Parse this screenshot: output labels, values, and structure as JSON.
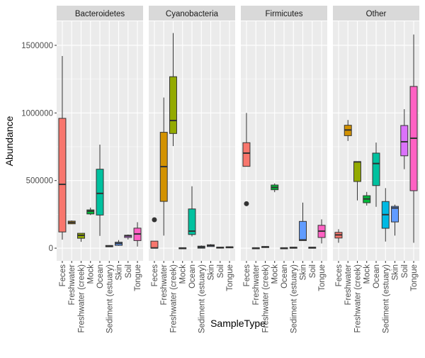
{
  "chart_data": {
    "type": "boxplot",
    "title": "",
    "xlabel": "SampleType",
    "ylabel": "Abundance",
    "ylim": [
      -94000,
      1678000
    ],
    "yticks": [
      0,
      500000,
      1000000,
      1500000
    ],
    "ytick_labels": [
      "0",
      "500000",
      "1000000",
      "1500000"
    ],
    "grid": true,
    "categories": [
      "Feces",
      "Freshwater",
      "Freshwater (creek)",
      "Mock",
      "Ocean",
      "Sediment (estuary)",
      "Skin",
      "Soil",
      "Tongue"
    ],
    "colors": [
      "#F8766D",
      "#D39200",
      "#93AA00",
      "#00BA38",
      "#00C19F",
      "#00B9E3",
      "#619CFF",
      "#DB72FB",
      "#FF61C3"
    ],
    "facets": [
      {
        "name": "Bacteroidetes",
        "boxes": [
          {
            "min": 63000,
            "q1": 120000,
            "median": 472000,
            "q3": 960000,
            "max": 1421000,
            "outliers": []
          },
          {
            "min": 178000,
            "q1": 180000,
            "median": 190000,
            "q3": 200000,
            "max": 205000,
            "outliers": []
          },
          {
            "min": 47000,
            "q1": 73000,
            "median": 95000,
            "q3": 110000,
            "max": 110000,
            "outliers": []
          },
          {
            "min": 245000,
            "q1": 253000,
            "median": 274000,
            "q3": 283000,
            "max": 300000,
            "outliers": []
          },
          {
            "min": 91000,
            "q1": 245000,
            "median": 405000,
            "q3": 584000,
            "max": 766000,
            "outliers": []
          },
          {
            "min": 8000,
            "q1": 10000,
            "median": 15000,
            "q3": 20000,
            "max": 22000,
            "outliers": []
          },
          {
            "min": 17000,
            "q1": 21000,
            "median": 35000,
            "q3": 44000,
            "max": 60000,
            "outliers": []
          },
          {
            "min": 64000,
            "q1": 79000,
            "median": 91000,
            "q3": 96000,
            "max": 101000,
            "outliers": []
          },
          {
            "min": 12000,
            "q1": 56000,
            "median": 105000,
            "q3": 148000,
            "max": 192000,
            "outliers": []
          }
        ]
      },
      {
        "name": "Cyanobacteria",
        "boxes": [
          {
            "min": 0,
            "q1": 0,
            "median": 2000,
            "q3": 52000,
            "max": 52000,
            "outliers": [
              210000
            ]
          },
          {
            "min": 93000,
            "q1": 346000,
            "median": 603000,
            "q3": 857000,
            "max": 1114000,
            "outliers": []
          },
          {
            "min": 755000,
            "q1": 848000,
            "median": 944000,
            "q3": 1268000,
            "max": 1591000,
            "outliers": []
          },
          {
            "min": 0,
            "q1": 0,
            "median": 1000,
            "q3": 3000,
            "max": 3000,
            "outliers": []
          },
          {
            "min": 87000,
            "q1": 101000,
            "median": 126000,
            "q3": 290000,
            "max": 458000,
            "outliers": []
          },
          {
            "min": 0,
            "q1": 0,
            "median": 8000,
            "q3": 15000,
            "max": 20000,
            "outliers": []
          },
          {
            "min": 12000,
            "q1": 12000,
            "median": 20000,
            "q3": 25000,
            "max": 30000,
            "outliers": []
          },
          {
            "min": 0,
            "q1": 0,
            "median": 5000,
            "q3": 8000,
            "max": 8000,
            "outliers": []
          },
          {
            "min": 5000,
            "q1": 5000,
            "median": 8000,
            "q3": 10000,
            "max": 10000,
            "outliers": []
          }
        ]
      },
      {
        "name": "Firmicutes",
        "boxes": [
          {
            "min": 605000,
            "q1": 605000,
            "median": 703000,
            "q3": 780000,
            "max": 1000000,
            "outliers": [
              329000
            ]
          },
          {
            "min": 0,
            "q1": 0,
            "median": 1000,
            "q3": 3000,
            "max": 3000,
            "outliers": []
          },
          {
            "min": 8000,
            "q1": 8000,
            "median": 10000,
            "q3": 12000,
            "max": 12000,
            "outliers": []
          },
          {
            "min": 414000,
            "q1": 432000,
            "median": 449000,
            "q3": 467000,
            "max": 479000,
            "outliers": []
          },
          {
            "min": 0,
            "q1": 0,
            "median": 1000,
            "q3": 3000,
            "max": 3000,
            "outliers": []
          },
          {
            "min": 2000,
            "q1": 2000,
            "median": 5000,
            "q3": 7000,
            "max": 7000,
            "outliers": []
          },
          {
            "min": 56000,
            "q1": 56000,
            "median": 61000,
            "q3": 198000,
            "max": 337000,
            "outliers": []
          },
          {
            "min": 3000,
            "q1": 3000,
            "median": 5000,
            "q3": 7000,
            "max": 7000,
            "outliers": []
          },
          {
            "min": 35000,
            "q1": 79000,
            "median": 126000,
            "q3": 169000,
            "max": 213000,
            "outliers": []
          }
        ]
      },
      {
        "name": "Other",
        "boxes": [
          {
            "min": 40000,
            "q1": 75000,
            "median": 98000,
            "q3": 117000,
            "max": 140000,
            "outliers": []
          },
          {
            "min": 793000,
            "q1": 832000,
            "median": 874000,
            "q3": 909000,
            "max": 948000,
            "outliers": []
          },
          {
            "min": 353000,
            "q1": 493000,
            "median": 638000,
            "q3": 640000,
            "max": 640000,
            "outliers": []
          },
          {
            "min": 315000,
            "q1": 336000,
            "median": 364000,
            "q3": 388000,
            "max": 416000,
            "outliers": []
          },
          {
            "min": 306000,
            "q1": 463000,
            "median": 626000,
            "q3": 703000,
            "max": 781000,
            "outliers": []
          },
          {
            "min": 49000,
            "q1": 147000,
            "median": 248000,
            "q3": 345000,
            "max": 444000,
            "outliers": []
          },
          {
            "min": 93000,
            "q1": 194000,
            "median": 297000,
            "q3": 309000,
            "max": 322000,
            "outliers": []
          },
          {
            "min": 584000,
            "q1": 683000,
            "median": 787000,
            "q3": 907000,
            "max": 1028000,
            "outliers": []
          },
          {
            "min": 40000,
            "q1": 425000,
            "median": 813000,
            "q3": 1196000,
            "max": 1580000,
            "outliers": []
          }
        ]
      }
    ]
  }
}
